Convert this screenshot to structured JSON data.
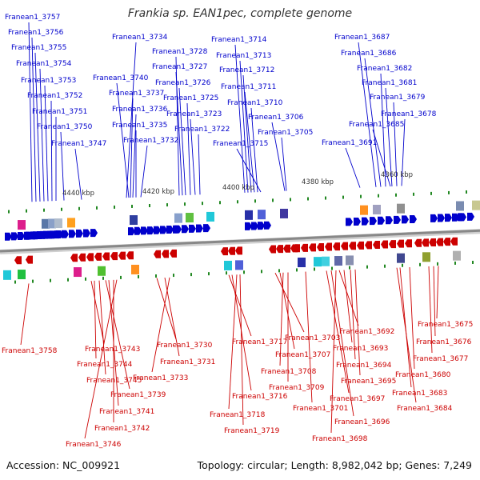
{
  "title": "Frankia sp. EAN1pec, complete genome",
  "footer": {
    "accession": "Accession: NC_009921",
    "topology": "Topology: circular; Length: 8,982,042 bp; Genes: 7,249"
  },
  "colors": {
    "forward": "#0000cc",
    "reverse": "#cc0000",
    "backbone": "#888888",
    "tick": "#228822"
  },
  "ruler": [
    "4440 kbp",
    "4420 kbp",
    "4400 kbp",
    "4380 kbp",
    "4360 kbp"
  ],
  "forward_genes": [
    "Franean1_3757",
    "Franean1_3756",
    "Franean1_3755",
    "Franean1_3754",
    "Franean1_3753",
    "Franean1_3752",
    "Franean1_3751",
    "Franean1_3750",
    "Franean1_3747",
    "Franean1_3734",
    "Franean1_3740",
    "Franean1_3737",
    "Franean1_3736",
    "Franean1_3735",
    "Franean1_3732",
    "Franean1_3728",
    "Franean1_3727",
    "Franean1_3726",
    "Franean1_3725",
    "Franean1_3723",
    "Franean1_3722",
    "Franean1_3714",
    "Franean1_3713",
    "Franean1_3712",
    "Franean1_3711",
    "Franean1_3710",
    "Franean1_3706",
    "Franean1_3705",
    "Franean1_3715",
    "Franean1_3687",
    "Franean1_3686",
    "Franean1_3682",
    "Franean1_3681",
    "Franean1_3679",
    "Franean1_3678",
    "Franean1_3685",
    "Franean1_3691"
  ],
  "reverse_genes": [
    "Franean1_3758",
    "Franean1_3743",
    "Franean1_3744",
    "Franean1_3745",
    "Franean1_3739",
    "Franean1_3741",
    "Franean1_3742",
    "Franean1_3746",
    "Franean1_3730",
    "Franean1_3731",
    "Franean1_3733",
    "Franean1_3717",
    "Franean1_3716",
    "Franean1_3718",
    "Franean1_3719",
    "Franean1_3703",
    "Franean1_3707",
    "Franean1_3708",
    "Franean1_3709",
    "Franean1_3701",
    "Franean1_3697",
    "Franean1_3696",
    "Franean1_3698",
    "Franean1_3692",
    "Franean1_3693",
    "Franean1_3694",
    "Franean1_3695",
    "Franean1_3675",
    "Franean1_3676",
    "Franean1_3677",
    "Franean1_3680",
    "Franean1_3683",
    "Franean1_3684"
  ]
}
